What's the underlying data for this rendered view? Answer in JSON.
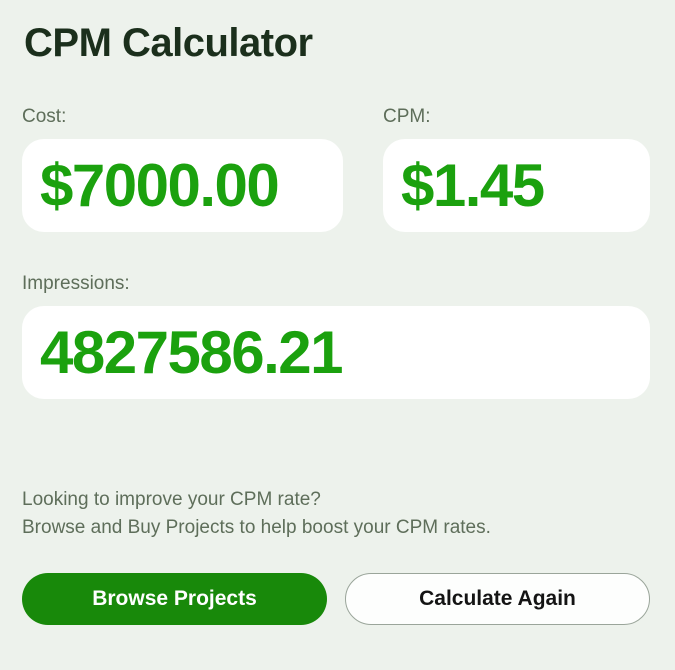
{
  "page": {
    "title": "CPM Calculator"
  },
  "theme": {
    "bg": "#edf2ec",
    "title": "#1b2f1c",
    "muted": "#5e6e5a",
    "accent": "#1ba10e",
    "button": "#18890a"
  },
  "fields": {
    "cost": {
      "label": "Cost:",
      "value": "$7000.00"
    },
    "cpm": {
      "label": "CPM:",
      "value": "$1.45"
    },
    "impressions": {
      "label": "Impressions:",
      "value": "4827586.21"
    }
  },
  "cta": {
    "line1": "Looking to improve your CPM rate?",
    "line2": "Browse and Buy Projects to help boost your CPM rates."
  },
  "buttons": {
    "browse": "Browse Projects",
    "calculate_again": "Calculate Again"
  }
}
